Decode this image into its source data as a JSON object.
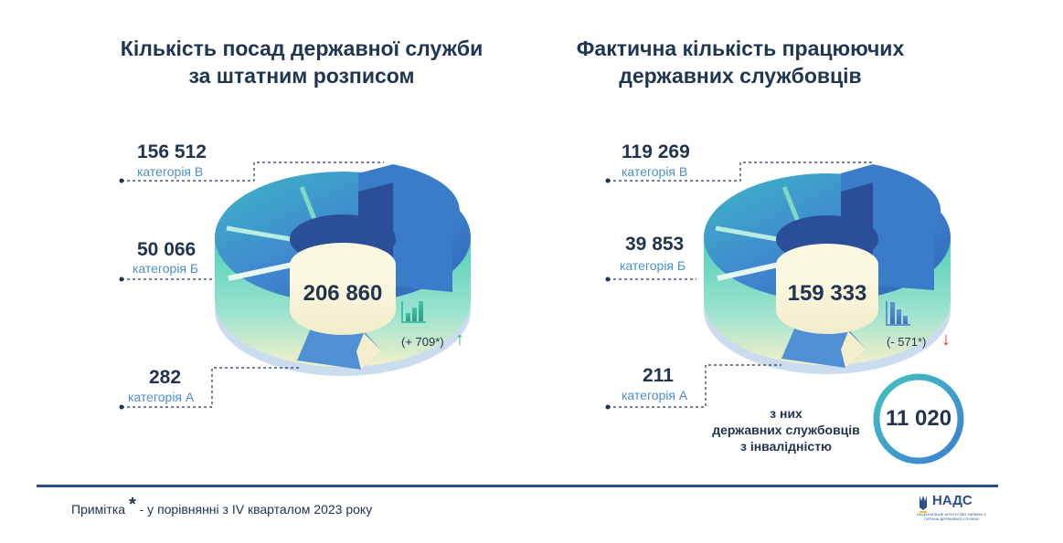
{
  "left": {
    "title_line1": "Кількість посад державної служби",
    "title_line2": "за штатним розписом",
    "cat_v_value": "156 512",
    "cat_v_label": "категорія В",
    "cat_b_value": "50 066",
    "cat_b_label": "категорія Б",
    "cat_a_value": "282",
    "cat_a_label": "категорія А",
    "total": "206 860",
    "delta": "(+ 709*)",
    "trend_icon": "bar-chart-rising-icon",
    "arrow": "↑"
  },
  "right": {
    "title_line1": "Фактична кількість працюючих",
    "title_line2": "державних службовців",
    "cat_v_value": "119 269",
    "cat_v_label": "категорія В",
    "cat_b_value": "39 853",
    "cat_b_label": "категорія Б",
    "cat_a_value": "211",
    "cat_a_label": "категорія А",
    "total": "159 333",
    "delta": "(- 571*)",
    "trend_icon": "bar-chart-falling-icon",
    "arrow": "↓",
    "disability_line1": "з них",
    "disability_line2": "державних службовців",
    "disability_line3": "з інвалідністю",
    "disability_value": "11 020"
  },
  "footer": {
    "note_prefix": "Примітка",
    "note_star": "*",
    "note_text": " - у порівнянні з IV кварталом 2023 року",
    "logo_text": "НАДС",
    "logo_subtext": "НАЦІОНАЛЬНЕ АГЕНТСТВО УКРАЇНИ З ПИТАНЬ ДЕРЖАВНОЇ СЛУЖБИ"
  },
  "colors": {
    "dark_text": "#22344f",
    "category_blue": "#4b8fcc",
    "up_green": "#37b26f",
    "down_red": "#d23a2f",
    "footer_navy": "#2b5087"
  }
}
